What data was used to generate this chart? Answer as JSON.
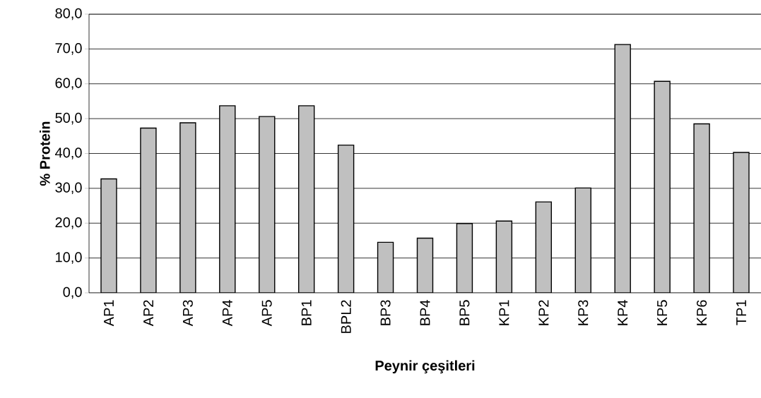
{
  "chart_data": {
    "type": "bar",
    "xlabel": "Peynir çeşitleri",
    "ylabel": "% Protein",
    "categories": [
      "AP1",
      "AP2",
      "AP3",
      "AP4",
      "AP5",
      "BP1",
      "BPL2",
      "BP3",
      "BP4",
      "BP5",
      "KP1",
      "KP2",
      "KP3",
      "KP4",
      "KP5",
      "KP6",
      "TP1"
    ],
    "values": [
      32.7,
      47.3,
      48.8,
      53.7,
      50.6,
      53.7,
      42.4,
      14.5,
      15.7,
      19.9,
      20.6,
      26.1,
      30.1,
      71.3,
      60.7,
      48.5,
      40.3
    ],
    "color": "#c0c0c0",
    "ylim": [
      0,
      80
    ],
    "yticks": [
      {
        "value": 0,
        "label": "0,0"
      },
      {
        "value": 10,
        "label": "10,0"
      },
      {
        "value": 20,
        "label": "20,0"
      },
      {
        "value": 30,
        "label": "30,0"
      },
      {
        "value": 40,
        "label": "40,0"
      },
      {
        "value": 50,
        "label": "50,0"
      },
      {
        "value": 60,
        "label": "60,0"
      },
      {
        "value": 70,
        "label": "70,0"
      },
      {
        "value": 80,
        "label": "80,0"
      }
    ],
    "grid": "y"
  }
}
